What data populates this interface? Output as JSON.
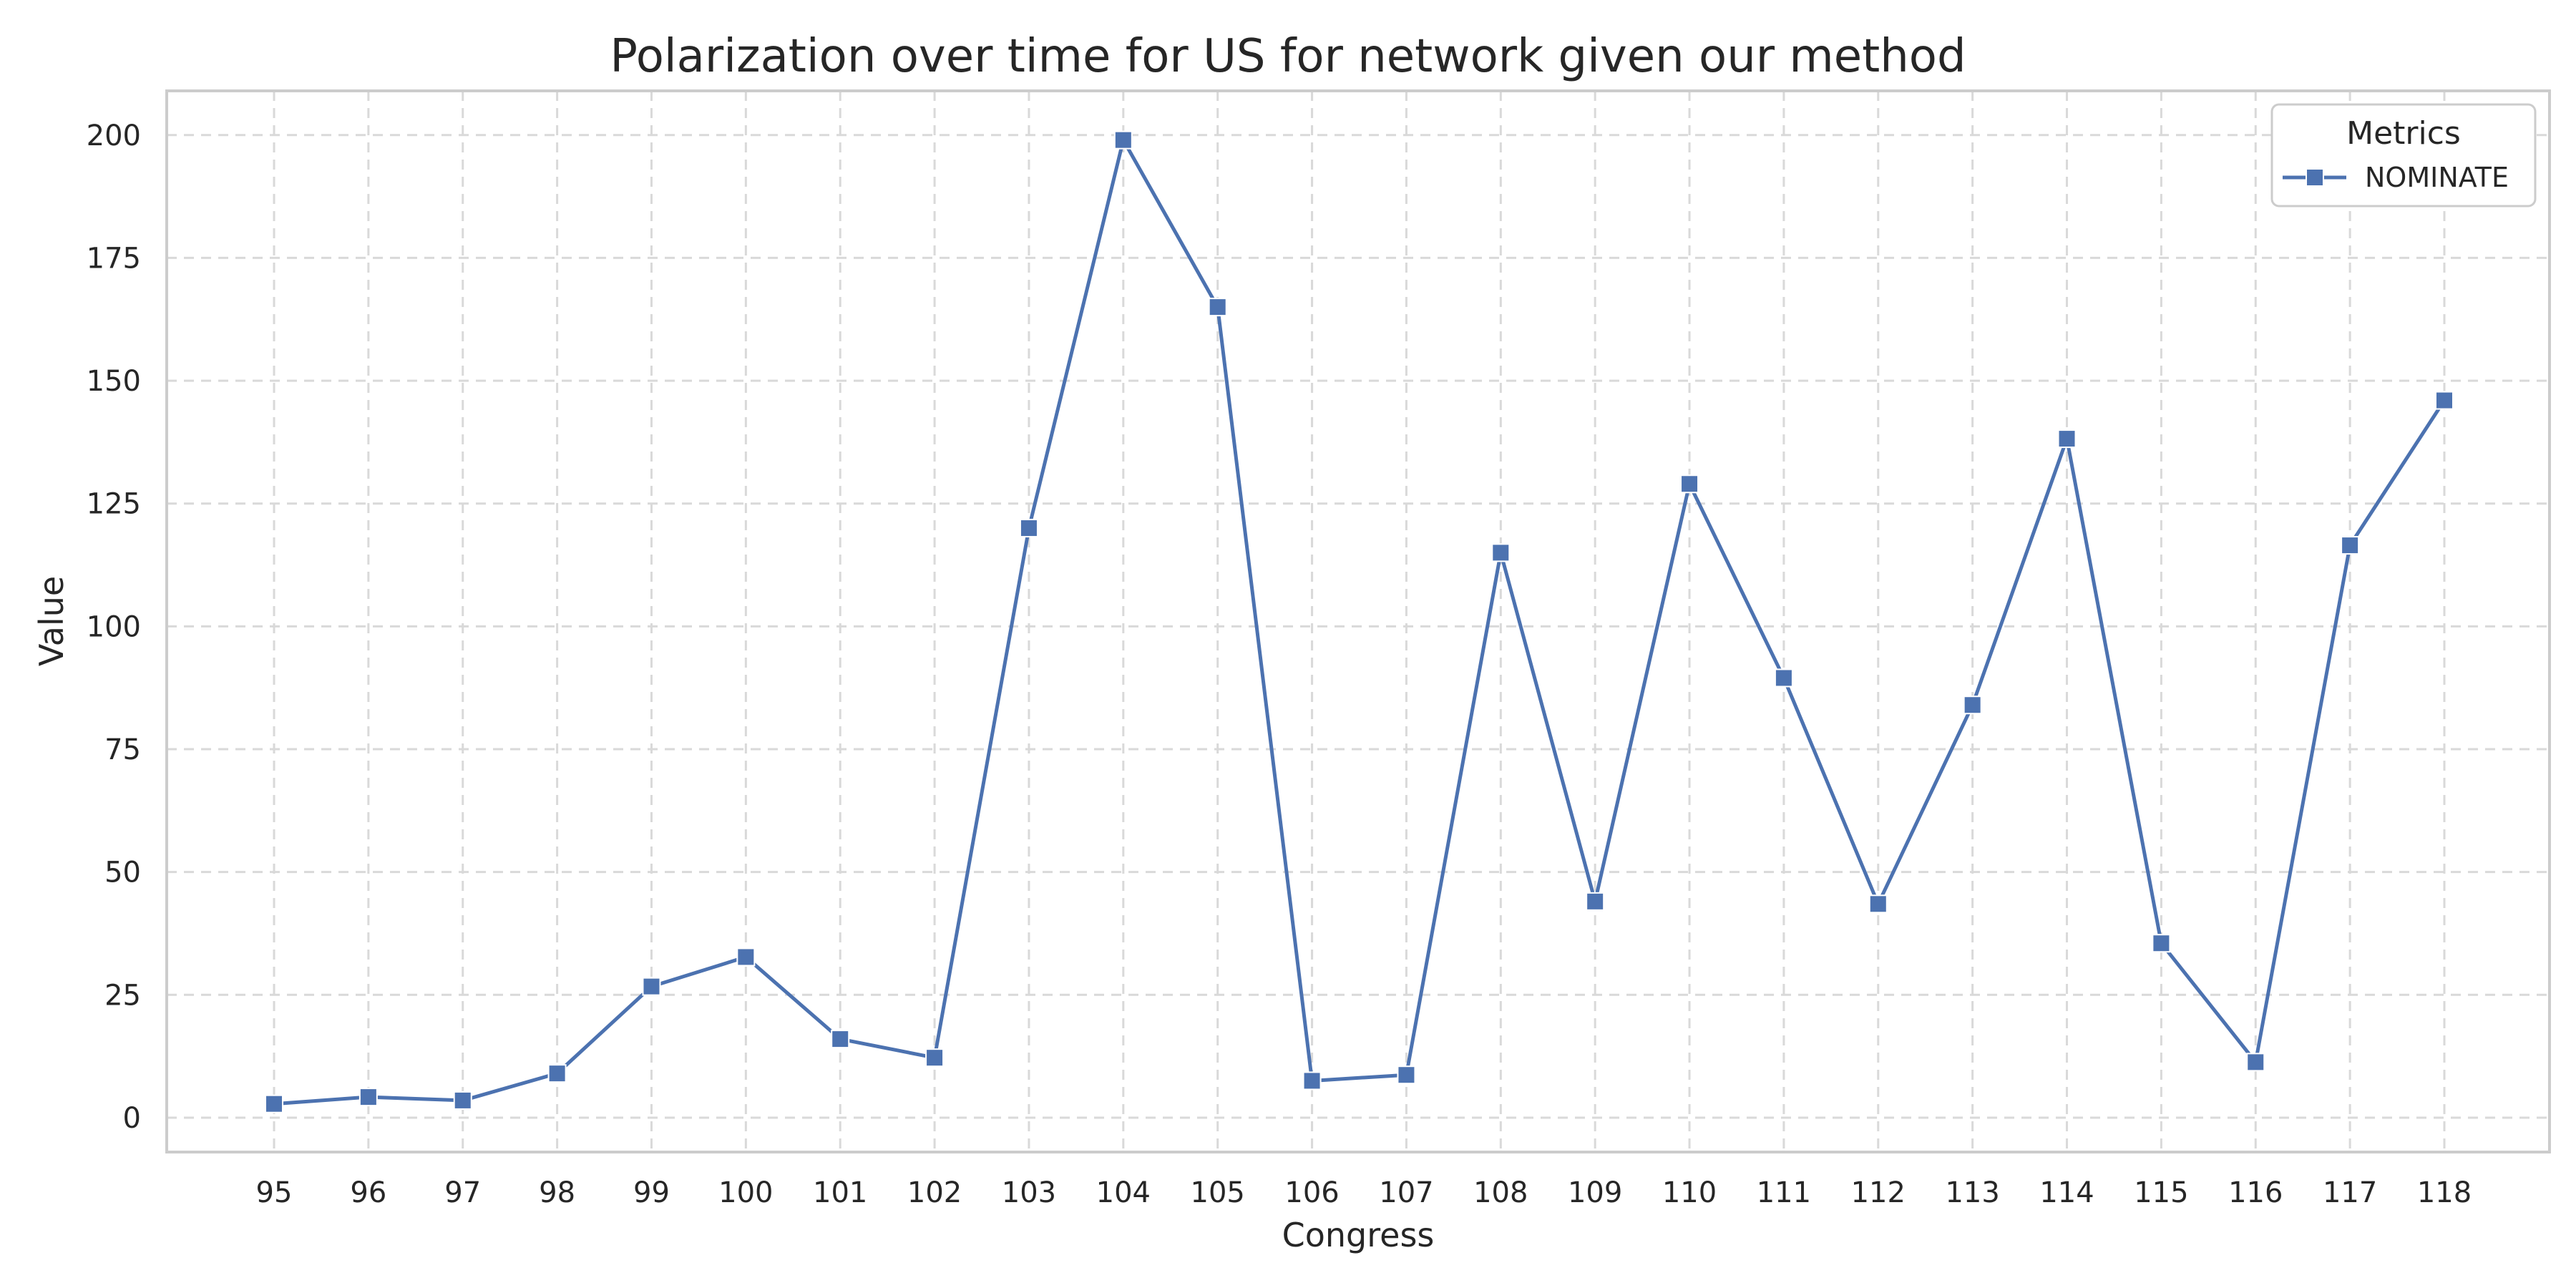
{
  "chart_data": {
    "type": "line",
    "title": "Polarization over time for US for network given our method",
    "xlabel": "Congress",
    "ylabel": "Value",
    "x": [
      "95",
      "96",
      "97",
      "98",
      "99",
      "100",
      "101",
      "102",
      "103",
      "104",
      "105",
      "106",
      "107",
      "108",
      "109",
      "110",
      "111",
      "112",
      "113",
      "114",
      "115",
      "116",
      "117",
      "118"
    ],
    "y_ticks": [
      "0",
      "25",
      "50",
      "75",
      "100",
      "125",
      "150",
      "175",
      "200"
    ],
    "ylim": [
      -7,
      209
    ],
    "grid": true,
    "legend": {
      "title": "Metrics",
      "placement": "top-right"
    },
    "series": [
      {
        "name": "NOMINATE",
        "color": "#4c72b0",
        "marker": "square",
        "values": [
          2.8,
          4.2,
          3.5,
          9.0,
          26.7,
          32.7,
          16.0,
          12.2,
          120.0,
          199.0,
          165.0,
          7.5,
          8.7,
          115.0,
          44.0,
          129.0,
          89.5,
          43.5,
          84.0,
          138.2,
          35.5,
          11.3,
          116.5,
          146.0
        ]
      }
    ]
  }
}
